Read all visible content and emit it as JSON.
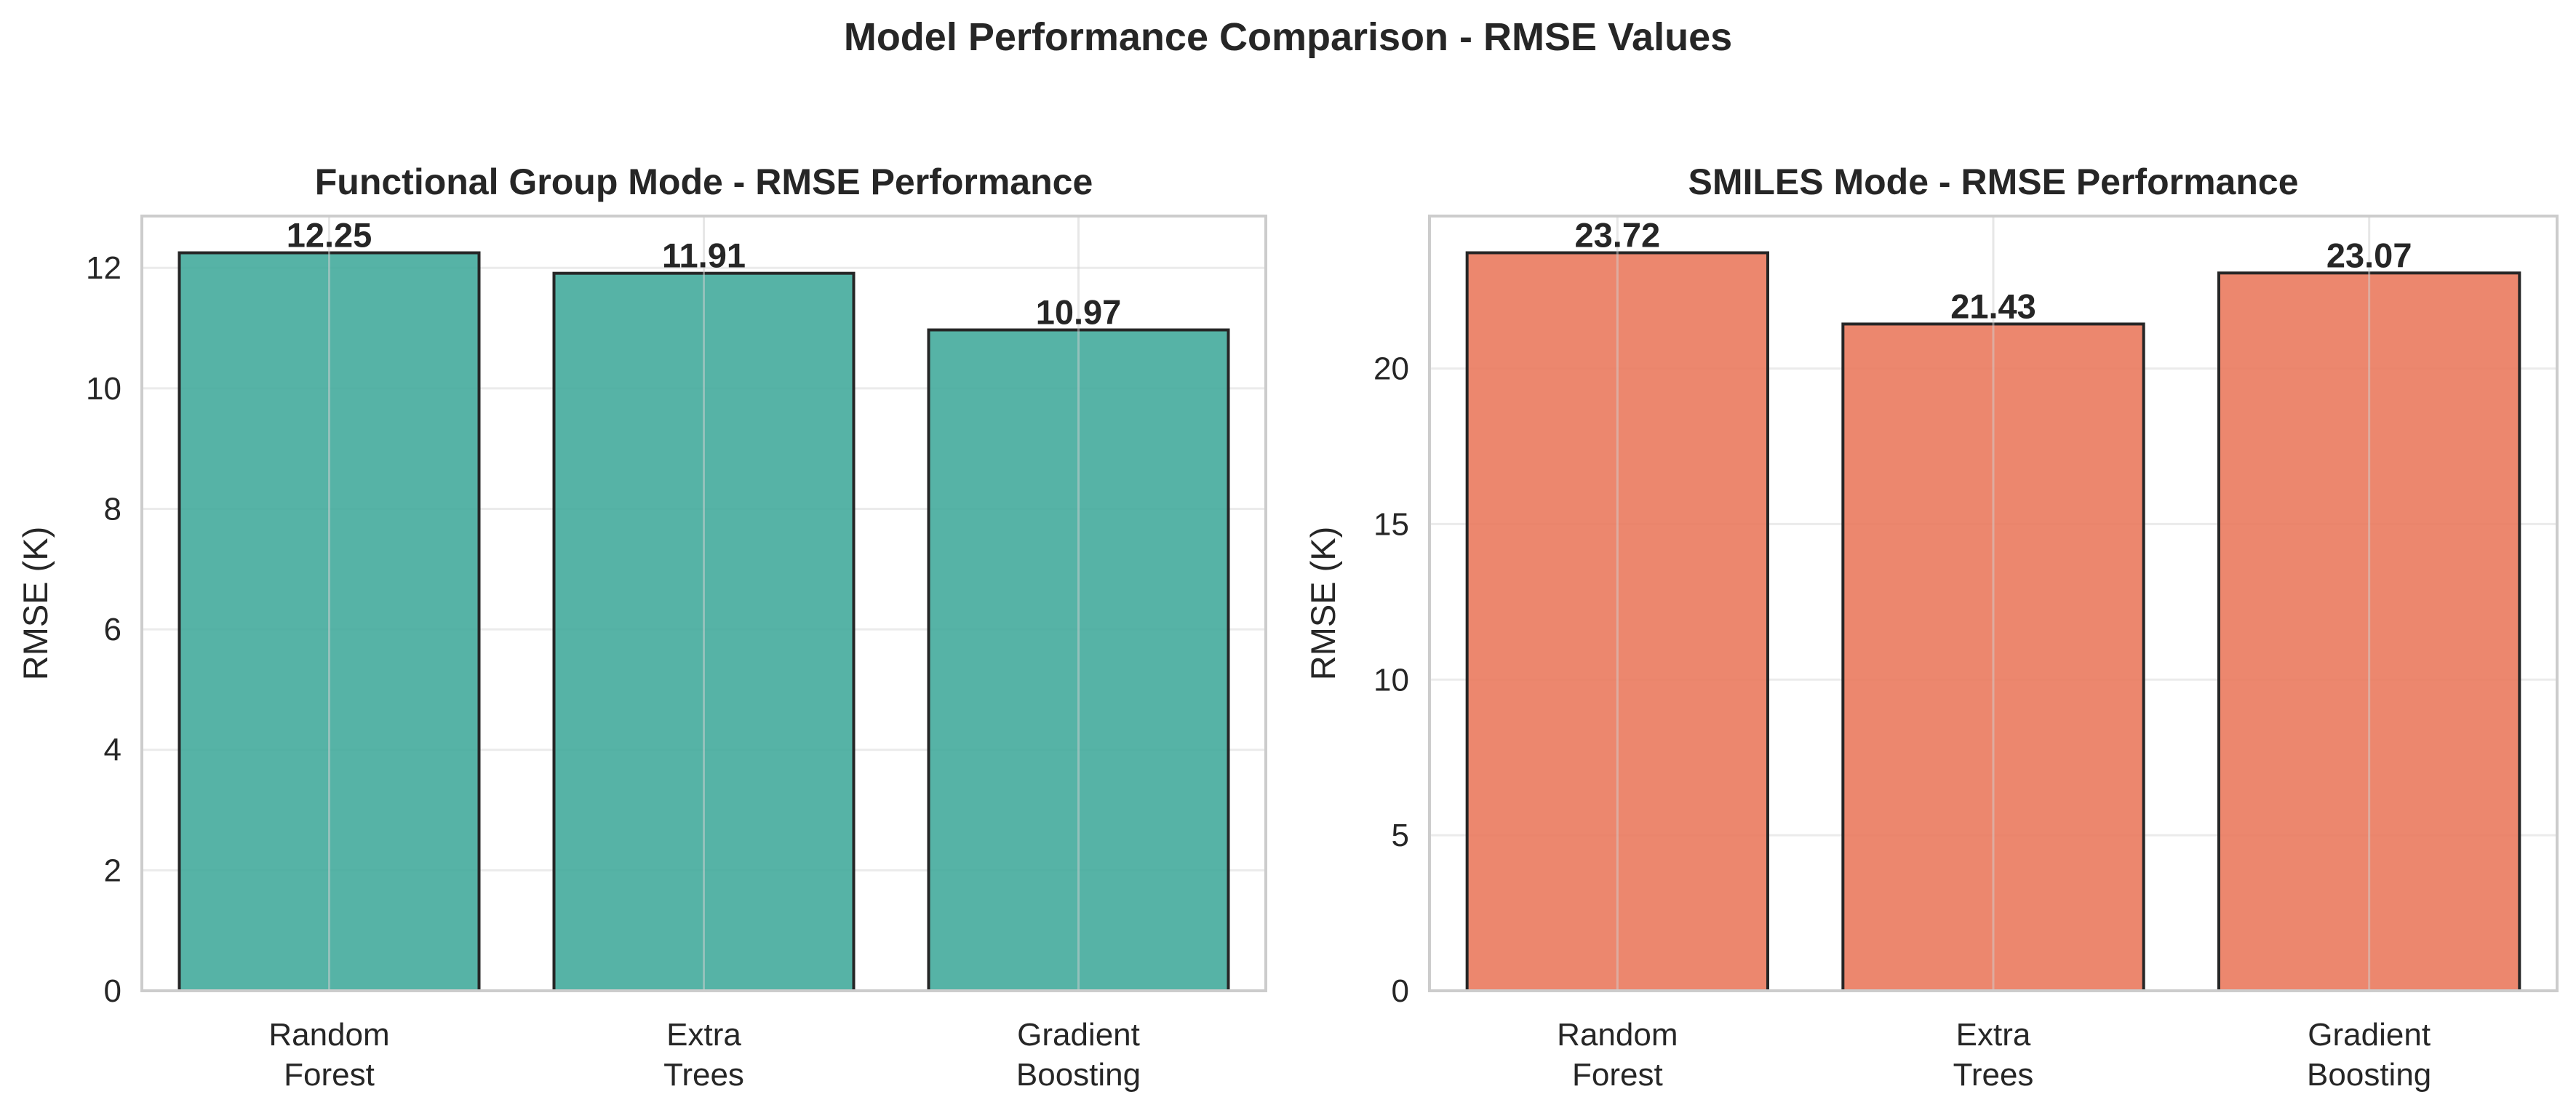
{
  "figure": {
    "title": "Model Performance Comparison - RMSE Values"
  },
  "chart_data": [
    {
      "type": "bar",
      "title": "Functional Group Mode - RMSE Performance",
      "xlabel": "",
      "ylabel": "RMSE (K)",
      "categories": [
        "Random\nForest",
        "Extra\nTrees",
        "Gradient\nBoosting"
      ],
      "values": [
        12.25,
        11.91,
        10.97
      ],
      "value_labels": [
        "12.25",
        "11.91",
        "10.97"
      ],
      "ylim": [
        0,
        12.86
      ],
      "yticks": [
        0,
        2,
        4,
        6,
        8,
        10,
        12
      ],
      "grid": true,
      "color": "#3fa89a",
      "edge_color": "#262626"
    },
    {
      "type": "bar",
      "title": "SMILES Mode - RMSE Performance",
      "xlabel": "",
      "ylabel": "RMSE (K)",
      "categories": [
        "Random\nForest",
        "Extra\nTrees",
        "Gradient\nBoosting"
      ],
      "values": [
        23.72,
        21.43,
        23.07
      ],
      "value_labels": [
        "23.72",
        "21.43",
        "23.07"
      ],
      "ylim": [
        0,
        24.9
      ],
      "yticks": [
        0,
        5,
        10,
        15,
        20
      ],
      "grid": true,
      "color": "#e9765a",
      "edge_color": "#262626"
    }
  ]
}
